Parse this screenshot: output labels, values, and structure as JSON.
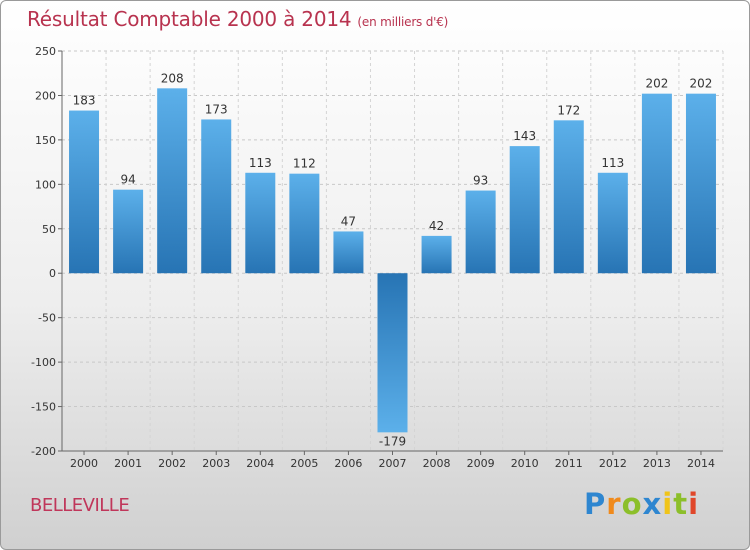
{
  "title": "Résultat Comptable 2000 à 2014",
  "subtitle": "(en milliers d'€)",
  "commune": "BELLEVILLE",
  "logo": "Proxiti",
  "colors": {
    "title": "#b8334f",
    "bar_light": "#5aaee8",
    "bar_dark": "#2a78b8"
  },
  "chart_data": {
    "type": "bar",
    "title": "Résultat Comptable 2000 à 2014",
    "subtitle": "(en milliers d'€)",
    "categories": [
      "2000",
      "2001",
      "2002",
      "2003",
      "2004",
      "2005",
      "2006",
      "2007",
      "2008",
      "2009",
      "2010",
      "2011",
      "2012",
      "2013",
      "2014"
    ],
    "values": [
      183,
      94,
      208,
      173,
      113,
      112,
      47,
      -179,
      42,
      93,
      143,
      172,
      113,
      202,
      202
    ],
    "data_labels": [
      "183",
      "94",
      "208",
      "173",
      "113",
      "112",
      "47",
      "-179",
      "42",
      "93",
      "143",
      "172",
      "113",
      "202",
      "202"
    ],
    "ylim": [
      -200,
      250
    ],
    "yticks": [
      250,
      200,
      150,
      100,
      50,
      0,
      -50,
      -100,
      -150,
      -200
    ],
    "ytick_labels": [
      "250",
      "200",
      "150",
      "100",
      "50",
      "0",
      "-50",
      "-100",
      "-150",
      "-200"
    ],
    "grid": true,
    "xlabel": "",
    "ylabel": ""
  }
}
